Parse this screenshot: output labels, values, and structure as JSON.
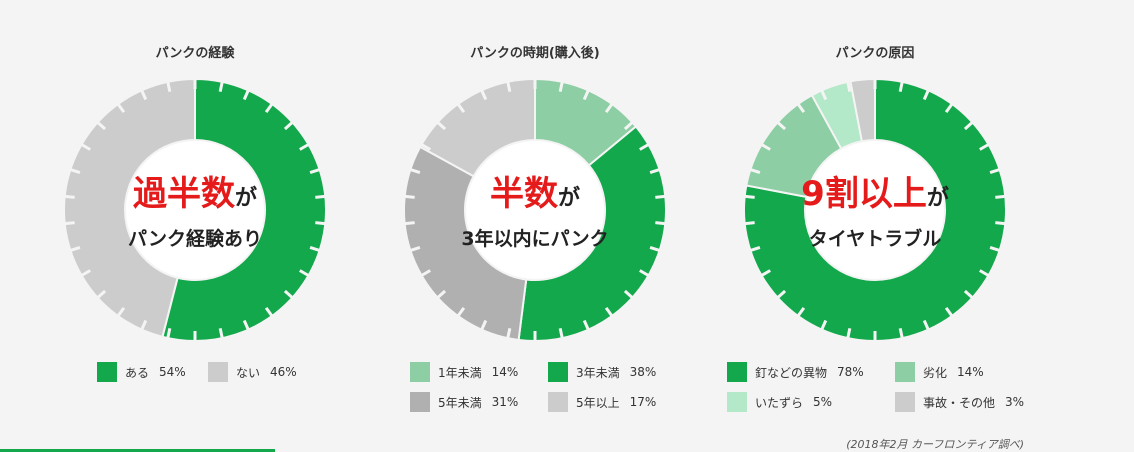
{
  "colors": {
    "green": "#12a84b",
    "medium_green": "#8dcea4",
    "light_green": "#b3e8c8",
    "gray": "#cccccc",
    "dark_gray": "#b0b0b0",
    "red": "#e51a1a",
    "text": "#333333"
  },
  "chart_data": [
    {
      "type": "pie",
      "title": "パンクの経験",
      "center_highlight": "過半数",
      "center_suffix": "が",
      "center_line2": "パンク経験あり",
      "slices": [
        {
          "label": "ある",
          "value": 54,
          "pct_label": "54%",
          "color": "#12a84b"
        },
        {
          "label": "ない",
          "value": 46,
          "pct_label": "46%",
          "color": "#cccccc"
        }
      ]
    },
    {
      "type": "pie",
      "title": "パンクの時期(購入後)",
      "center_highlight": "半数",
      "center_suffix": "が",
      "center_line2": "3年以内にパンク",
      "slices": [
        {
          "label": "1年未満",
          "value": 14,
          "pct_label": "14%",
          "color": "#8dcea4"
        },
        {
          "label": "3年未満",
          "value": 38,
          "pct_label": "38%",
          "color": "#12a84b"
        },
        {
          "label": "5年未満",
          "value": 31,
          "pct_label": "31%",
          "color": "#b0b0b0"
        },
        {
          "label": "5年以上",
          "value": 17,
          "pct_label": "17%",
          "color": "#cccccc"
        }
      ]
    },
    {
      "type": "pie",
      "title": "パンクの原因",
      "center_highlight": "9割以上",
      "center_suffix": "が",
      "center_line2": "タイヤトラブル",
      "slices": [
        {
          "label": "釘などの異物",
          "value": 78,
          "pct_label": "78%",
          "color": "#12a84b"
        },
        {
          "label": "劣化",
          "value": 14,
          "pct_label": "14%",
          "color": "#8dcea4"
        },
        {
          "label": "いたずら",
          "value": 5,
          "pct_label": "5%",
          "color": "#b3e8c8"
        },
        {
          "label": "事故・その他",
          "value": 3,
          "pct_label": "3%",
          "color": "#cccccc"
        }
      ]
    }
  ],
  "source_note": "(2018年2月 カーフロンティア調べ)"
}
